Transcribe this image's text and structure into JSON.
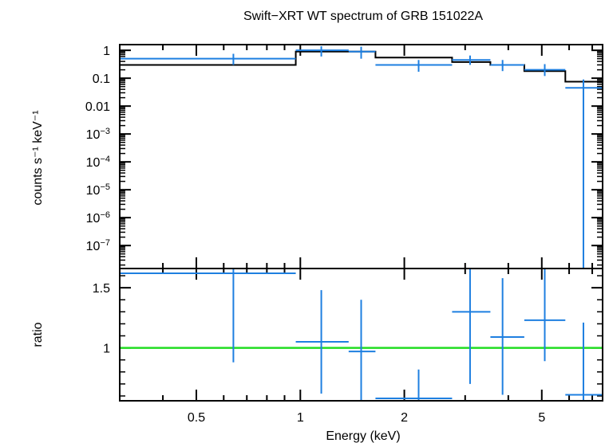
{
  "title": "Swift−XRT WT spectrum of GRB 151022A",
  "colors": {
    "data": "#1e7fe0",
    "model": "#000000",
    "reference_line": "#22dd22",
    "frame": "#000000"
  },
  "chart_data": [
    {
      "type": "step-spectrum",
      "title": "Swift−XRT WT spectrum of GRB 151022A",
      "xscale": "log",
      "yscale": "log",
      "xlim": [
        0.3,
        7.5
      ],
      "ylim": [
        1.5e-08,
        1.6
      ],
      "ylabel": "counts s⁻¹ keV⁻¹",
      "xlabel": "",
      "y_ticks": [
        {
          "value": 1,
          "label": "1"
        },
        {
          "value": 0.1,
          "label": "0.1"
        },
        {
          "value": 0.01,
          "label": "0.01"
        },
        {
          "value": 0.001,
          "label": "10−3"
        },
        {
          "value": 0.0001,
          "label": "10−4"
        },
        {
          "value": 1e-05,
          "label": "10−5"
        },
        {
          "value": 1e-06,
          "label": "10−6"
        },
        {
          "value": 1e-07,
          "label": "10−7"
        }
      ],
      "series": [
        {
          "kind": "data",
          "points": [
            {
              "x": 0.64,
              "xlo": 0.3,
              "xhi": 0.97,
              "y": 0.5,
              "ylo": 0.3,
              "yhi": 0.75
            },
            {
              "x": 1.15,
              "xlo": 0.97,
              "xhi": 1.38,
              "y": 1.0,
              "ylo": 0.6,
              "yhi": 1.4
            },
            {
              "x": 1.5,
              "xlo": 1.38,
              "xhi": 1.65,
              "y": 0.9,
              "ylo": 0.5,
              "yhi": 1.35
            },
            {
              "x": 2.2,
              "xlo": 1.65,
              "xhi": 2.75,
              "y": 0.3,
              "ylo": 0.17,
              "yhi": 0.45
            },
            {
              "x": 3.1,
              "xlo": 2.75,
              "xhi": 3.55,
              "y": 0.45,
              "ylo": 0.3,
              "yhi": 0.65
            },
            {
              "x": 3.85,
              "xlo": 3.55,
              "xhi": 4.45,
              "y": 0.3,
              "ylo": 0.18,
              "yhi": 0.45
            },
            {
              "x": 5.1,
              "xlo": 4.45,
              "xhi": 5.85,
              "y": 0.2,
              "ylo": 0.12,
              "yhi": 0.32
            },
            {
              "x": 6.6,
              "xlo": 5.85,
              "xhi": 7.5,
              "y": 0.045,
              "ylo": 1.5e-08,
              "yhi": 0.09
            }
          ]
        },
        {
          "kind": "model",
          "steps": [
            {
              "xlo": 0.3,
              "xhi": 0.97,
              "y": 0.3
            },
            {
              "xlo": 0.97,
              "xhi": 1.65,
              "y": 0.9
            },
            {
              "xlo": 1.65,
              "xhi": 2.75,
              "y": 0.55
            },
            {
              "xlo": 2.75,
              "xhi": 3.55,
              "y": 0.38
            },
            {
              "xlo": 3.55,
              "xhi": 4.45,
              "y": 0.3
            },
            {
              "xlo": 4.45,
              "xhi": 5.85,
              "y": 0.18
            },
            {
              "xlo": 5.85,
              "xhi": 7.5,
              "y": 0.075
            }
          ]
        }
      ]
    },
    {
      "type": "ratio",
      "xscale": "log",
      "yscale": "linear",
      "xlim": [
        0.3,
        7.5
      ],
      "ylim": [
        0.56,
        1.66
      ],
      "xlabel": "Energy (keV)",
      "ylabel": "ratio",
      "reference_y": 1,
      "x_ticks": [
        {
          "value": 0.5,
          "label": "0.5"
        },
        {
          "value": 1,
          "label": "1"
        },
        {
          "value": 2,
          "label": "2"
        },
        {
          "value": 5,
          "label": "5"
        }
      ],
      "y_ticks": [
        {
          "value": 1,
          "label": "1"
        },
        {
          "value": 1.5,
          "label": "1.5"
        }
      ],
      "points": [
        {
          "x": 0.64,
          "xlo": 0.3,
          "xhi": 0.97,
          "y": 1.62,
          "ylo": 0.88,
          "yhi": 1.66
        },
        {
          "x": 1.15,
          "xlo": 0.97,
          "xhi": 1.38,
          "y": 1.05,
          "ylo": 0.62,
          "yhi": 1.48
        },
        {
          "x": 1.5,
          "xlo": 1.38,
          "xhi": 1.65,
          "y": 0.97,
          "ylo": 0.56,
          "yhi": 1.4
        },
        {
          "x": 2.2,
          "xlo": 1.65,
          "xhi": 2.75,
          "y": 0.58,
          "ylo": 0.56,
          "yhi": 0.82
        },
        {
          "x": 3.1,
          "xlo": 2.75,
          "xhi": 3.55,
          "y": 1.3,
          "ylo": 0.7,
          "yhi": 1.66
        },
        {
          "x": 3.85,
          "xlo": 3.55,
          "xhi": 4.45,
          "y": 1.09,
          "ylo": 0.61,
          "yhi": 1.58
        },
        {
          "x": 5.1,
          "xlo": 4.45,
          "xhi": 5.85,
          "y": 1.23,
          "ylo": 0.89,
          "yhi": 1.66
        },
        {
          "x": 6.6,
          "xlo": 5.85,
          "xhi": 7.5,
          "y": 0.61,
          "ylo": 0.56,
          "yhi": 1.21
        }
      ]
    }
  ]
}
